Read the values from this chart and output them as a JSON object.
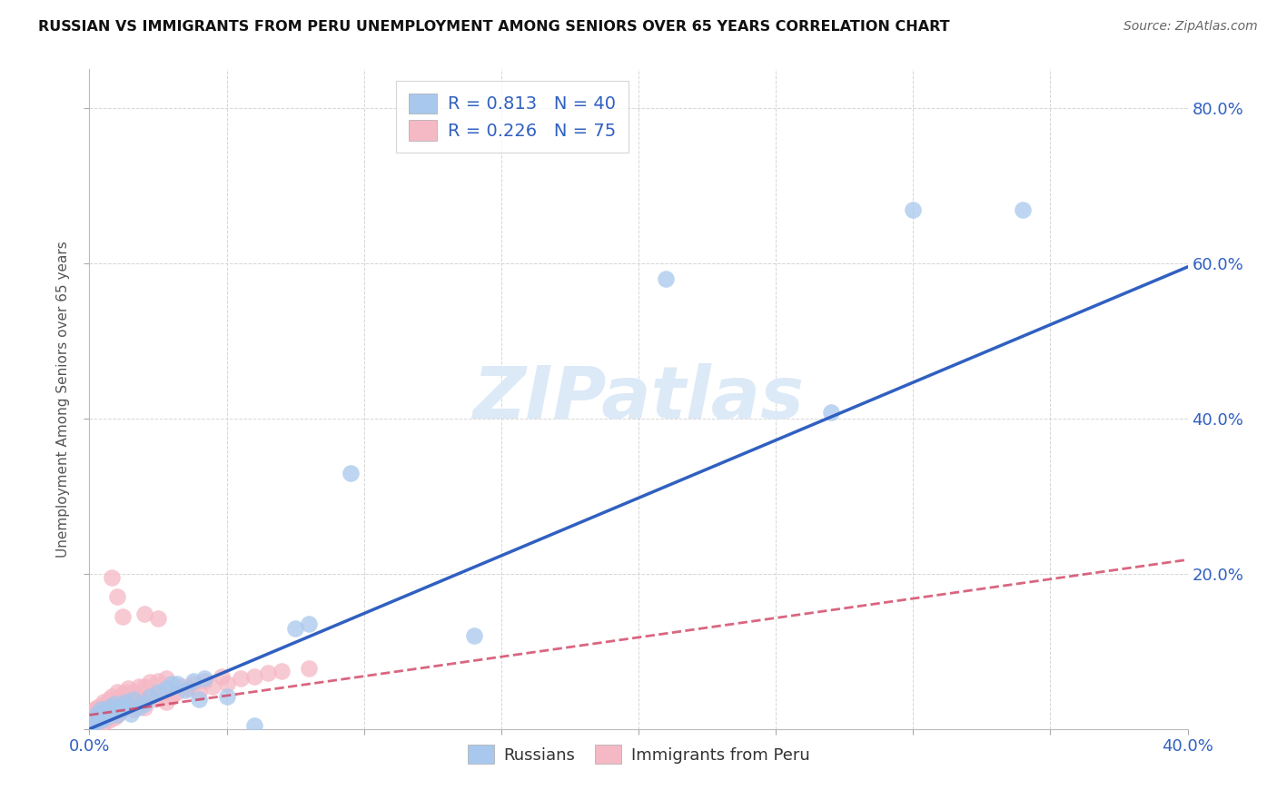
{
  "title": "RUSSIAN VS IMMIGRANTS FROM PERU UNEMPLOYMENT AMONG SENIORS OVER 65 YEARS CORRELATION CHART",
  "source": "Source: ZipAtlas.com",
  "ylabel": "Unemployment Among Seniors over 65 years",
  "xlim": [
    0.0,
    0.4
  ],
  "ylim": [
    0.0,
    0.85
  ],
  "background_color": "#ffffff",
  "grid_color": "#cccccc",
  "watermark_text": "ZIPatlas",
  "watermark_color": "#dce9f7",
  "russian_color": "#a8c8ed",
  "peru_color": "#f5b8c5",
  "russian_line_color": "#3060c0",
  "peru_line_color": "#d04060",
  "legend_text_color": "#3060c0",
  "legend_N_color": "#e02020",
  "axis_tick_color": "#3060c0",
  "ylabel_color": "#555555",
  "title_color": "#111111",
  "source_color": "#666666",
  "russian_R": "0.813",
  "russian_N": "40",
  "peru_R": "0.226",
  "peru_N": "75",
  "russian_line_x0": 0.0,
  "russian_line_x1": 0.4,
  "russian_line_y0": 0.0,
  "russian_line_y1": 0.595,
  "peru_line_x0": 0.0,
  "peru_line_x1": 0.4,
  "peru_line_y0": 0.018,
  "peru_line_y1": 0.218,
  "russians_x": [
    0.001,
    0.002,
    0.002,
    0.003,
    0.003,
    0.004,
    0.004,
    0.005,
    0.005,
    0.006,
    0.007,
    0.008,
    0.009,
    0.01,
    0.011,
    0.012,
    0.013,
    0.015,
    0.016,
    0.018,
    0.02,
    0.022,
    0.025,
    0.028,
    0.03,
    0.032,
    0.035,
    0.038,
    0.04,
    0.042,
    0.05,
    0.06,
    0.075,
    0.08,
    0.095,
    0.14,
    0.21,
    0.27,
    0.3,
    0.34
  ],
  "russians_y": [
    0.005,
    0.008,
    0.015,
    0.01,
    0.02,
    0.012,
    0.025,
    0.018,
    0.022,
    0.015,
    0.028,
    0.022,
    0.032,
    0.018,
    0.03,
    0.025,
    0.035,
    0.02,
    0.038,
    0.028,
    0.032,
    0.042,
    0.048,
    0.052,
    0.058,
    0.058,
    0.05,
    0.062,
    0.038,
    0.065,
    0.042,
    0.005,
    0.13,
    0.135,
    0.33,
    0.12,
    0.58,
    0.408,
    0.668,
    0.668
  ],
  "peru_x": [
    0.001,
    0.001,
    0.001,
    0.002,
    0.002,
    0.002,
    0.002,
    0.003,
    0.003,
    0.003,
    0.003,
    0.004,
    0.004,
    0.004,
    0.005,
    0.005,
    0.005,
    0.005,
    0.006,
    0.006,
    0.007,
    0.007,
    0.007,
    0.008,
    0.008,
    0.008,
    0.009,
    0.009,
    0.01,
    0.01,
    0.01,
    0.011,
    0.011,
    0.012,
    0.012,
    0.013,
    0.013,
    0.014,
    0.014,
    0.015,
    0.016,
    0.016,
    0.017,
    0.018,
    0.018,
    0.019,
    0.02,
    0.02,
    0.022,
    0.022,
    0.024,
    0.025,
    0.026,
    0.028,
    0.028,
    0.03,
    0.032,
    0.034,
    0.036,
    0.038,
    0.04,
    0.042,
    0.045,
    0.048,
    0.05,
    0.055,
    0.06,
    0.065,
    0.07,
    0.08,
    0.008,
    0.01,
    0.012,
    0.02,
    0.025
  ],
  "peru_y": [
    0.005,
    0.012,
    0.018,
    0.008,
    0.015,
    0.02,
    0.025,
    0.01,
    0.018,
    0.022,
    0.028,
    0.012,
    0.02,
    0.03,
    0.008,
    0.015,
    0.022,
    0.035,
    0.018,
    0.028,
    0.012,
    0.025,
    0.038,
    0.02,
    0.03,
    0.042,
    0.015,
    0.025,
    0.018,
    0.032,
    0.048,
    0.022,
    0.038,
    0.025,
    0.045,
    0.028,
    0.048,
    0.03,
    0.052,
    0.032,
    0.025,
    0.048,
    0.035,
    0.04,
    0.055,
    0.038,
    0.028,
    0.055,
    0.042,
    0.06,
    0.038,
    0.062,
    0.045,
    0.035,
    0.065,
    0.042,
    0.048,
    0.055,
    0.052,
    0.058,
    0.048,
    0.062,
    0.055,
    0.068,
    0.058,
    0.065,
    0.068,
    0.072,
    0.075,
    0.078,
    0.195,
    0.17,
    0.145,
    0.148,
    0.142
  ]
}
